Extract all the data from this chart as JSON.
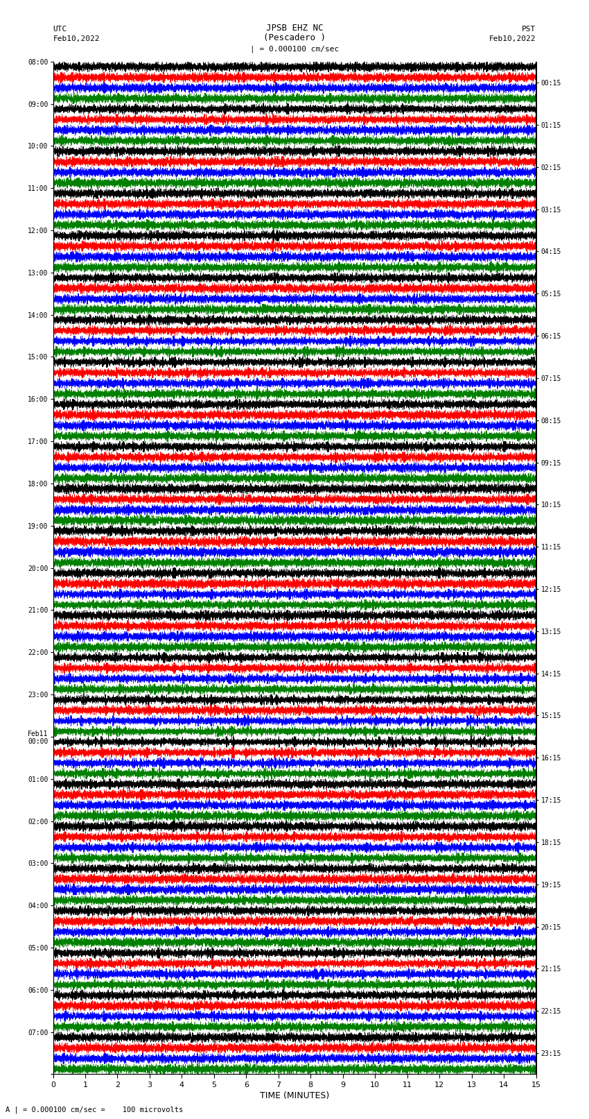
{
  "title_line1": "JPSB EHZ NC",
  "title_line2": "(Pescadero )",
  "scale_label": "| = 0.000100 cm/sec",
  "left_label_top": "UTC",
  "left_label_date": "Feb10,2022",
  "right_label_top": "PST",
  "right_label_date": "Feb10,2022",
  "xlabel": "TIME (MINUTES)",
  "bottom_label": "A | = 0.000100 cm/sec =    100 microvolts",
  "utc_times": [
    "08:00",
    "09:00",
    "10:00",
    "11:00",
    "12:00",
    "13:00",
    "14:00",
    "15:00",
    "16:00",
    "17:00",
    "18:00",
    "19:00",
    "20:00",
    "21:00",
    "22:00",
    "23:00",
    "Feb11\n00:00",
    "01:00",
    "02:00",
    "03:00",
    "04:00",
    "05:00",
    "06:00",
    "07:00"
  ],
  "pst_times": [
    "00:15",
    "01:15",
    "02:15",
    "03:15",
    "04:15",
    "05:15",
    "06:15",
    "07:15",
    "08:15",
    "09:15",
    "10:15",
    "11:15",
    "12:15",
    "13:15",
    "14:15",
    "15:15",
    "16:15",
    "17:15",
    "18:15",
    "19:15",
    "20:15",
    "21:15",
    "22:15",
    "23:15"
  ],
  "n_rows": 24,
  "traces_per_row": 4,
  "colors": [
    "black",
    "red",
    "blue",
    "green"
  ],
  "n_points": 9000,
  "x_ticks": [
    0,
    1,
    2,
    3,
    4,
    5,
    6,
    7,
    8,
    9,
    10,
    11,
    12,
    13,
    14,
    15
  ],
  "fig_width": 8.5,
  "fig_height": 16.13,
  "bg_color": "white",
  "seed": 42,
  "trace_amplitude": 0.42,
  "base_noise": 0.18,
  "event_rows": {
    "6": {
      "amp": 4.0,
      "prob": 0.003
    },
    "7": {
      "amp": 3.5,
      "prob": 0.004
    },
    "14": {
      "amp": 4.0,
      "prob": 0.004
    },
    "15": {
      "amp": 5.0,
      "prob": 0.005
    },
    "16": {
      "amp": 4.5,
      "prob": 0.005
    },
    "21": {
      "amp": 2.5,
      "prob": 0.003
    },
    "22": {
      "amp": 3.0,
      "prob": 0.003
    }
  }
}
